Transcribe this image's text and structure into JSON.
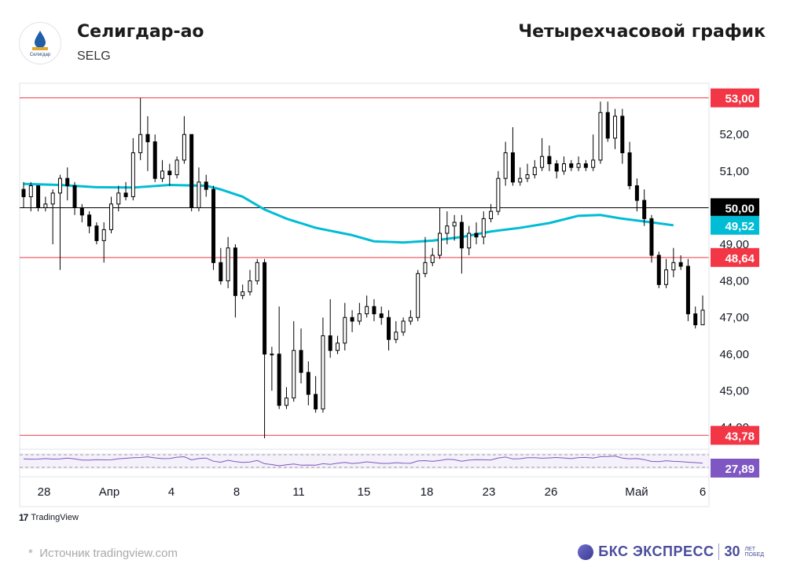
{
  "header": {
    "name": "Селигдар-ао",
    "ticker": "SELG",
    "logo_text": "Селигдар",
    "timeframe": "Четырехчасовой график"
  },
  "footer": {
    "tv_label": "TradingView",
    "source": "Источник tradingview.com",
    "brand": "БКС ЭКСПРЕСС",
    "brand_num": "30",
    "brand_small": [
      "ЛЕТ",
      "ПОБЕД"
    ]
  },
  "chart_data": {
    "type": "candlestick",
    "ylim": [
      43.4,
      53.4
    ],
    "y_ticks": [
      "52,00",
      "51,00",
      "49,00",
      "48,00",
      "47,00",
      "46,00",
      "45,00",
      "44,00"
    ],
    "x_labels": [
      "28",
      "Апр",
      "4",
      "8",
      "11",
      "15",
      "18",
      "23",
      "26",
      "Май",
      "6"
    ],
    "levels": [
      {
        "value": 53.0,
        "label": "53,00",
        "color": "#f23645"
      },
      {
        "value": 48.64,
        "label": "48,64",
        "color": "#f23645"
      },
      {
        "value": 43.78,
        "label": "43,78",
        "color": "#f23645"
      },
      {
        "value": 50.0,
        "label": "50,00",
        "color": "#000000"
      }
    ],
    "ma_label": {
      "value": 49.52,
      "label": "49,52",
      "color": "#00bcd4"
    },
    "ma": [
      [
        0,
        50.65
      ],
      [
        5,
        50.62
      ],
      [
        10,
        50.56
      ],
      [
        15,
        50.55
      ],
      [
        20,
        50.62
      ],
      [
        25,
        50.6
      ],
      [
        27,
        50.5
      ],
      [
        30,
        50.3
      ],
      [
        33,
        49.95
      ],
      [
        36,
        49.7
      ],
      [
        40,
        49.45
      ],
      [
        45,
        49.25
      ],
      [
        48,
        49.08
      ],
      [
        52,
        49.05
      ],
      [
        56,
        49.1
      ],
      [
        60,
        49.2
      ],
      [
        64,
        49.35
      ],
      [
        68,
        49.45
      ],
      [
        72,
        49.58
      ],
      [
        76,
        49.78
      ],
      [
        79,
        49.8
      ],
      [
        82,
        49.7
      ],
      [
        86,
        49.6
      ],
      [
        89,
        49.52
      ]
    ],
    "candles": [
      [
        50.5,
        50.3,
        50.7,
        50.0
      ],
      [
        50.3,
        50.6,
        50.7,
        49.9
      ],
      [
        50.6,
        50.0,
        50.6,
        49.9
      ],
      [
        50.0,
        50.1,
        50.3,
        49.9
      ],
      [
        50.1,
        50.4,
        50.5,
        49.0
      ],
      [
        50.4,
        50.8,
        50.9,
        48.3
      ],
      [
        50.8,
        50.6,
        51.1,
        50.2
      ],
      [
        50.6,
        50.0,
        50.7,
        49.8
      ],
      [
        50.0,
        49.8,
        50.1,
        49.6
      ],
      [
        49.8,
        49.5,
        49.9,
        49.3
      ],
      [
        49.5,
        49.1,
        49.6,
        49.0
      ],
      [
        49.1,
        49.4,
        49.6,
        48.5
      ],
      [
        49.4,
        50.1,
        50.3,
        49.3
      ],
      [
        50.1,
        50.4,
        50.6,
        49.9
      ],
      [
        50.4,
        50.3,
        50.7,
        50.2
      ],
      [
        50.3,
        51.5,
        51.9,
        50.2
      ],
      [
        51.5,
        52.0,
        53.0,
        51.3
      ],
      [
        52.0,
        51.8,
        52.5,
        51.0
      ],
      [
        51.8,
        50.8,
        52.0,
        50.7
      ],
      [
        50.8,
        51.0,
        51.3,
        50.7
      ],
      [
        51.0,
        50.9,
        51.2,
        50.6
      ],
      [
        50.9,
        51.3,
        51.4,
        50.8
      ],
      [
        51.3,
        52.0,
        52.5,
        51.2
      ],
      [
        52.0,
        50.0,
        52.0,
        49.9
      ],
      [
        50.0,
        50.7,
        51.1,
        49.9
      ],
      [
        50.7,
        50.5,
        50.9,
        50.3
      ],
      [
        50.5,
        48.5,
        50.6,
        48.3
      ],
      [
        48.5,
        48.0,
        48.9,
        47.9
      ],
      [
        48.0,
        48.9,
        49.2,
        47.8
      ],
      [
        48.9,
        47.6,
        49.0,
        47.0
      ],
      [
        47.6,
        47.7,
        47.9,
        47.5
      ],
      [
        47.7,
        48.0,
        48.3,
        47.6
      ],
      [
        48.0,
        48.5,
        48.6,
        47.9
      ],
      [
        48.5,
        46.0,
        48.6,
        43.7
      ],
      [
        46.0,
        46.0,
        46.2,
        45.0
      ],
      [
        46.0,
        44.6,
        47.3,
        44.5
      ],
      [
        44.6,
        44.8,
        45.1,
        44.5
      ],
      [
        44.8,
        46.1,
        46.9,
        44.7
      ],
      [
        46.1,
        45.5,
        46.7,
        45.2
      ],
      [
        45.5,
        44.9,
        45.8,
        44.6
      ],
      [
        44.9,
        44.5,
        45.4,
        44.4
      ],
      [
        44.5,
        46.5,
        47.0,
        44.4
      ],
      [
        46.5,
        46.1,
        47.5,
        45.9
      ],
      [
        46.1,
        46.3,
        46.5,
        46.0
      ],
      [
        46.3,
        47.0,
        47.4,
        46.1
      ],
      [
        47.0,
        46.9,
        47.2,
        46.6
      ],
      [
        46.9,
        47.1,
        47.4,
        46.8
      ],
      [
        47.1,
        47.3,
        47.6,
        47.0
      ],
      [
        47.3,
        47.1,
        47.5,
        46.9
      ],
      [
        47.1,
        47.0,
        47.3,
        46.8
      ],
      [
        47.0,
        46.4,
        47.2,
        46.1
      ],
      [
        46.4,
        46.6,
        46.9,
        46.3
      ],
      [
        46.6,
        46.9,
        47.0,
        46.5
      ],
      [
        46.9,
        47.0,
        47.2,
        46.8
      ],
      [
        47.0,
        48.2,
        48.3,
        46.9
      ],
      [
        48.2,
        48.5,
        49.2,
        48.1
      ],
      [
        48.5,
        48.7,
        48.9,
        48.4
      ],
      [
        48.7,
        49.3,
        50.0,
        48.6
      ],
      [
        49.3,
        49.5,
        49.9,
        49.0
      ],
      [
        49.5,
        49.6,
        49.8,
        49.1
      ],
      [
        49.6,
        48.9,
        49.8,
        48.2
      ],
      [
        48.9,
        49.3,
        49.5,
        48.7
      ],
      [
        49.3,
        49.2,
        49.6,
        49.0
      ],
      [
        49.2,
        49.7,
        49.9,
        49.0
      ],
      [
        49.7,
        49.9,
        50.1,
        49.6
      ],
      [
        49.9,
        50.8,
        51.0,
        49.8
      ],
      [
        50.8,
        51.5,
        51.8,
        50.6
      ],
      [
        51.5,
        50.7,
        52.2,
        50.6
      ],
      [
        50.7,
        50.8,
        51.1,
        50.6
      ],
      [
        50.8,
        50.9,
        51.2,
        50.7
      ],
      [
        50.9,
        51.1,
        51.3,
        50.8
      ],
      [
        51.1,
        51.4,
        51.9,
        51.0
      ],
      [
        51.4,
        51.2,
        51.7,
        51.0
      ],
      [
        51.2,
        51.0,
        51.3,
        50.8
      ],
      [
        51.0,
        51.2,
        51.4,
        50.9
      ],
      [
        51.2,
        51.1,
        51.3,
        51.0
      ],
      [
        51.1,
        51.2,
        51.4,
        51.0
      ],
      [
        51.2,
        51.1,
        51.3,
        51.0
      ],
      [
        51.1,
        51.3,
        52.0,
        51.0
      ],
      [
        51.3,
        52.6,
        52.9,
        51.2
      ],
      [
        52.6,
        51.9,
        52.9,
        51.8
      ],
      [
        51.9,
        52.5,
        52.7,
        51.6
      ],
      [
        52.5,
        51.5,
        52.7,
        51.2
      ],
      [
        51.5,
        50.6,
        51.8,
        50.5
      ],
      [
        50.6,
        50.2,
        50.8,
        49.9
      ],
      [
        50.2,
        49.7,
        50.5,
        49.5
      ],
      [
        49.7,
        48.7,
        49.8,
        48.5
      ],
      [
        48.7,
        47.9,
        48.8,
        47.8
      ],
      [
        47.9,
        48.3,
        48.6,
        47.8
      ],
      [
        48.3,
        48.5,
        48.9,
        48.1
      ],
      [
        48.5,
        48.4,
        48.7,
        48.3
      ],
      [
        48.4,
        47.1,
        48.6,
        46.9
      ],
      [
        47.1,
        46.8,
        47.3,
        46.7
      ],
      [
        46.8,
        47.2,
        47.6,
        46.9
      ]
    ],
    "rsi": {
      "value": 27.89,
      "label": "27,89",
      "color": "#7e57c2"
    }
  }
}
